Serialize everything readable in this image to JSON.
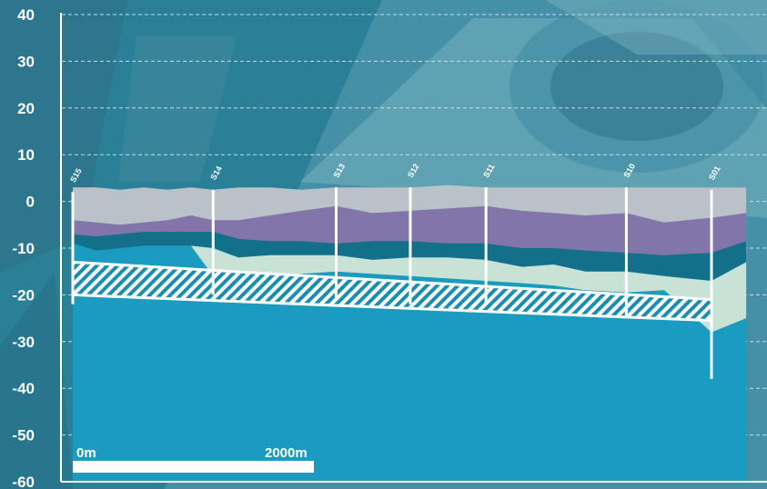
{
  "chart_data": {
    "type": "area",
    "y_axis": {
      "ticks": [
        "40",
        "30",
        "20",
        "10",
        "0",
        "-10",
        "-20",
        "-30",
        "-40",
        "-50",
        "-60"
      ],
      "ylim": [
        -60,
        40
      ],
      "grid": true
    },
    "boreholes": [
      {
        "label": "S15",
        "x_m": 0,
        "top": 2,
        "bottom": -22
      },
      {
        "label": "S14",
        "x_m": 890,
        "top": 2.5,
        "bottom": -20
      },
      {
        "label": "S13",
        "x_m": 1670,
        "top": 3,
        "bottom": -21
      },
      {
        "label": "S12",
        "x_m": 2140,
        "top": 3,
        "bottom": -22
      },
      {
        "label": "S11",
        "x_m": 2620,
        "top": 3,
        "bottom": -22
      },
      {
        "label": "S10",
        "x_m": 3510,
        "top": 3,
        "bottom": -25
      },
      {
        "label": "S01",
        "x_m": 4050,
        "top": 2.5,
        "bottom": -38
      }
    ],
    "layers": [
      {
        "name": "surface_fill",
        "color": "#b9c2c9"
      },
      {
        "name": "upper_layer",
        "color": "#8275aa"
      },
      {
        "name": "dark_band",
        "color": "#12708a"
      },
      {
        "name": "pale_layer",
        "color": "#c9e2d6"
      },
      {
        "name": "base_layer",
        "color": "#1a9bc0"
      }
    ],
    "tunnel_band": {
      "top_start": -13,
      "top_end": -21,
      "bottom_start": -20,
      "bottom_end": -25.5,
      "pattern": "hatched"
    },
    "scale_bar": {
      "start_label": "0m",
      "end_label": "2000m"
    }
  },
  "colors": {
    "background": "#2a7d95",
    "grid": "#d8eef4",
    "axis": "#ffffff"
  }
}
